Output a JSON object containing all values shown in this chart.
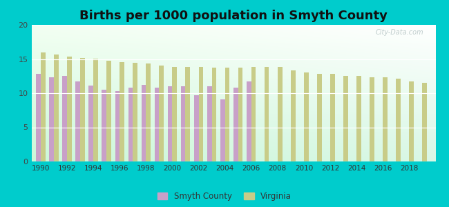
{
  "title": "Births per 1000 population in Smyth County",
  "smyth_years": [
    1990,
    1991,
    1992,
    1993,
    1994,
    1995,
    1996,
    1997,
    1998,
    1999,
    2000,
    2001,
    2002,
    2003,
    2004,
    2005,
    2006
  ],
  "smyth_vals": [
    12.8,
    12.3,
    12.5,
    11.7,
    11.1,
    10.5,
    10.3,
    10.8,
    11.2,
    10.8,
    11.0,
    11.0,
    9.7,
    11.0,
    9.1,
    10.8,
    11.7
  ],
  "va_years": [
    1990,
    1991,
    1992,
    1993,
    1994,
    1995,
    1996,
    1997,
    1998,
    1999,
    2000,
    2001,
    2002,
    2003,
    2004,
    2005,
    2006,
    2007,
    2008,
    2009,
    2010,
    2011,
    2012,
    2013,
    2014,
    2015,
    2016,
    2017,
    2018,
    2019
  ],
  "va_vals": [
    16.0,
    15.7,
    15.4,
    15.2,
    15.1,
    14.7,
    14.5,
    14.4,
    14.3,
    14.0,
    13.8,
    13.8,
    13.8,
    13.7,
    13.7,
    13.7,
    13.8,
    13.8,
    13.8,
    13.3,
    13.0,
    12.8,
    12.8,
    12.5,
    12.5,
    12.3,
    12.3,
    12.1,
    11.7,
    11.5
  ],
  "smyth_color": "#c8a0c8",
  "virginia_color": "#c8cc88",
  "background_color": "#00cccc",
  "ylim": [
    0,
    20
  ],
  "yticks": [
    0,
    5,
    10,
    15,
    20
  ],
  "bar_width": 0.35,
  "title_fontsize": 13,
  "watermark": "City-Data.com",
  "xlim_left": 1989.3,
  "xlim_right": 2020.0
}
